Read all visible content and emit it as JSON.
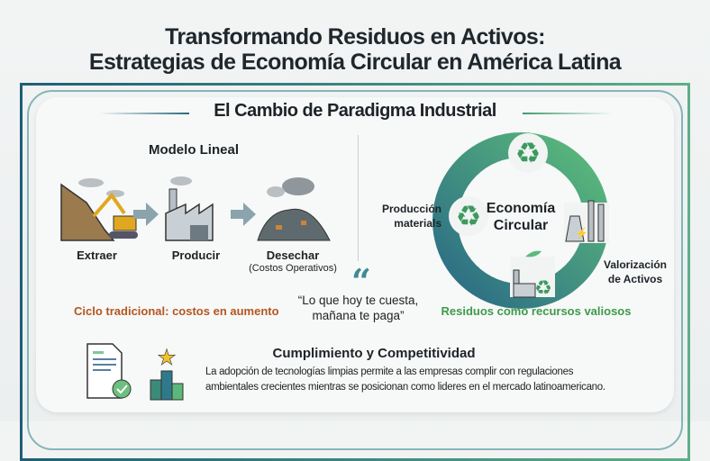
{
  "header": {
    "title_line1": "Transformando Residuos en Activos:",
    "title_line2": "Estrategias de Economía Circular en América Latina"
  },
  "section": {
    "title": "El Cambio de Paradigma Industrial"
  },
  "linear": {
    "title": "Modelo Lineal",
    "steps": [
      {
        "label": "Extraer",
        "icon": "excavator-icon"
      },
      {
        "label": "Producir",
        "icon": "factory-icon"
      },
      {
        "label": "Desechar",
        "sublabel": "(Costos Operativos)",
        "icon": "waste-pile-icon"
      }
    ],
    "caption": "Ciclo tradicional: costos en aumento",
    "caption_color": "#b4561f"
  },
  "quote": {
    "line1": "“Lo que hoy te cuesta,",
    "line2": "mañana te paga”",
    "color": "#3c8a94"
  },
  "circular": {
    "center_line1": "Economía",
    "center_line2": "Circular",
    "left_label_line1": "Producción",
    "left_label_line2": "materials",
    "right_label_line1": "Valorización",
    "right_label_line2": "de Activos",
    "caption": "Residuos como recursos valiosos",
    "caption_color": "#3f9a4a",
    "ring_colors": [
      "#2f7a8a",
      "#5cb87a"
    ]
  },
  "footer": {
    "title": "Cumplimiento y Competitividad",
    "body_line1": "La adopción de tecnologías limpias permite a las empresas complir con regulaciones",
    "body_line2": "ambientales crecientes mientras se posicionan como lideres en el mercado latinoamericano."
  }
}
